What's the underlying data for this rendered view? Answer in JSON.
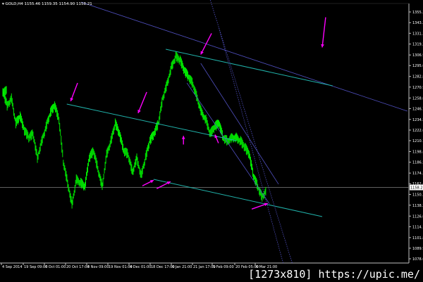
{
  "header": {
    "symbol": "GOLD,H4",
    "open": "1155.46",
    "high": "1159.35",
    "low": "1154.90",
    "close": "1158.21"
  },
  "watermark": "[1273x810] https://upic.me/",
  "chart_data": {
    "type": "line",
    "style": "candlestick-like bars, green on black",
    "colors": {
      "background": "#000000",
      "price": "#00ff00",
      "axis": "#c0c0c0",
      "trend_cyan": "#20b2aa",
      "trend_blue": "#5050c0",
      "arrow": "#ff00ff",
      "current_price_line": "#808080"
    },
    "ylim": [
      1078.05,
      1355.25
    ],
    "y_ticks": [
      "1355.25",
      "1343.25",
      "1331.30",
      "1319.20",
      "1306.95",
      "1295.05",
      "1282.80",
      "1270.90",
      "1258.65",
      "1246.75",
      "1234.55",
      "1222.60",
      "1210.70",
      "1198.45",
      "1186.55",
      "1174.30",
      "1162.40",
      "1150.35",
      "1138.25",
      "1126.00",
      "1114.10",
      "1101.85",
      "1089.95",
      "1078.05"
    ],
    "current_price": "1158.21",
    "x_ticks": [
      "4 Sep 2014",
      "19 Sep 09:00",
      "6 Oct 01:00",
      "20 Oct 17:00",
      "4 Nov 09:00",
      "19 Nov 01:00",
      "4 Dec 01:00",
      "18 Dec 17:00",
      "6 Jan 21:00",
      "21 Jan 17:00",
      "5 Feb 09:00",
      "20 Feb 05:00",
      "6 Mar 21:00"
    ],
    "values": [
      1266,
      1250,
      1258,
      1230,
      1238,
      1222,
      1214,
      1218,
      1191,
      1210,
      1226,
      1242,
      1250,
      1234,
      1187,
      1163,
      1139,
      1167,
      1163,
      1159,
      1191,
      1199,
      1179,
      1159,
      1195,
      1210,
      1230,
      1218,
      1199,
      1195,
      1175,
      1191,
      1171,
      1191,
      1210,
      1218,
      1230,
      1258,
      1274,
      1293,
      1305,
      1301,
      1289,
      1282,
      1274,
      1258,
      1242,
      1234,
      1218,
      1226,
      1230,
      1214,
      1210,
      1214,
      1214,
      1210,
      1203,
      1195,
      1171,
      1159,
      1147,
      1155
    ],
    "trend_lines": [
      {
        "color": "blue",
        "from": [
          18.1,
          1366.3
        ],
        "to": [
          93.6,
          1243.9
        ]
      },
      {
        "color": "cyan",
        "from": [
          37.7,
          1313.4
        ],
        "to": [
          76.3,
          1272.3
        ]
      },
      {
        "color": "cyan",
        "from": [
          14.8,
          1251.8
        ],
        "to": [
          54.0,
          1210.7
        ]
      },
      {
        "color": "cyan",
        "from": [
          34.9,
          1167.3
        ],
        "to": [
          73.9,
          1125.4
        ]
      },
      {
        "color": "blue",
        "from": [
          45.8,
          1297.6
        ],
        "to": [
          63.8,
          1161.8
        ]
      },
      {
        "color": "blue",
        "from": [
          42.6,
          1275.5
        ],
        "to": [
          61.7,
          1139.7
        ]
      },
      {
        "color": "blue-dotted",
        "from": [
          48.0,
          1368.7
        ],
        "to": [
          67.0,
          1072.6
        ]
      },
      {
        "color": "blue-dotted",
        "from": [
          50.0,
          1337.3
        ],
        "to": [
          64.9,
          1072.6
        ]
      }
    ],
    "arrows": [
      {
        "from": [
          17.3,
          1275.5
        ],
        "to": [
          15.7,
          1255.0
        ]
      },
      {
        "from": [
          33.3,
          1265.3
        ],
        "to": [
          31.3,
          1241.6
        ]
      },
      {
        "from": [
          48.3,
          1331.2
        ],
        "to": [
          45.8,
          1307.5
        ]
      },
      {
        "from": [
          74.7,
          1349.3
        ],
        "to": [
          73.9,
          1315.4
        ]
      },
      {
        "from": [
          41.8,
          1206.4
        ],
        "to": [
          41.8,
          1216.1
        ]
      },
      {
        "from": [
          49.9,
          1208.0
        ],
        "to": [
          49.1,
          1217.5
        ]
      },
      {
        "from": [
          32.3,
          1160.0
        ],
        "to": [
          34.9,
          1166.3
        ]
      },
      {
        "from": [
          35.6,
          1156.8
        ],
        "to": [
          38.8,
          1164.7
        ]
      },
      {
        "from": [
          57.6,
          1133.9
        ],
        "to": [
          61.3,
          1140.2
        ]
      }
    ]
  }
}
